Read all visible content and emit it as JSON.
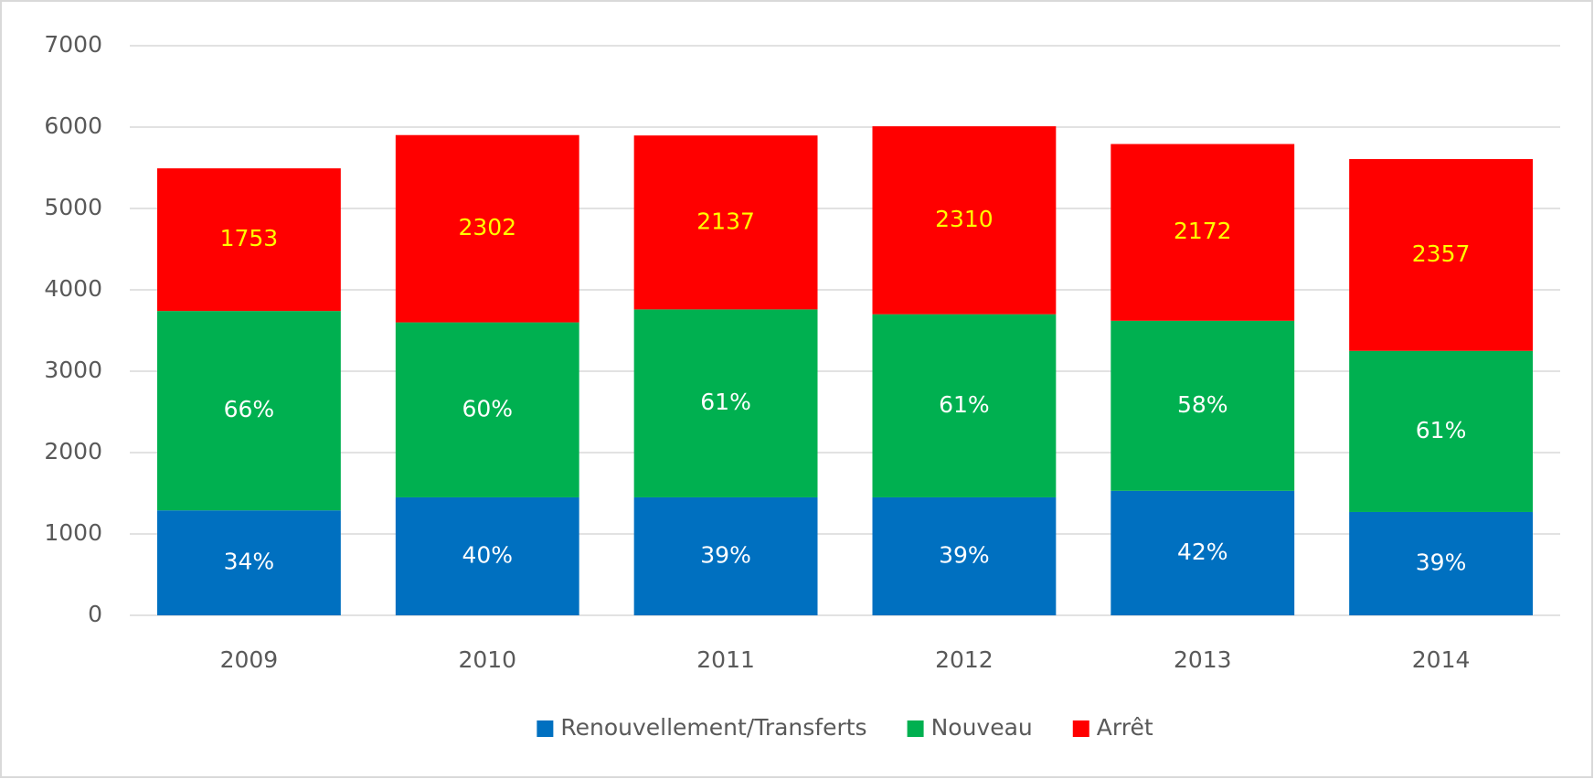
{
  "chart_data": {
    "type": "stacked_bar",
    "categories": [
      "2009",
      "2010",
      "2011",
      "2012",
      "2013",
      "2014"
    ],
    "series": [
      {
        "name": "Renouvellement/Transferts",
        "color": "#0070c0",
        "label_color": "#ffffff",
        "values": [
          1290,
          1450,
          1450,
          1450,
          1530,
          1270
        ],
        "segment_labels": [
          "34%",
          "40%",
          "39%",
          "39%",
          "42%",
          "39%"
        ]
      },
      {
        "name": "Nouveau",
        "color": "#00b050",
        "label_color": "#ffffff",
        "values": [
          2450,
          2150,
          2310,
          2250,
          2090,
          1980
        ],
        "segment_labels": [
          "66%",
          "60%",
          "61%",
          "61%",
          "58%",
          "61%"
        ]
      },
      {
        "name": "Arrêt",
        "color": "#ff0000",
        "label_color": "#ffff00",
        "values": [
          1753,
          2302,
          2137,
          2310,
          2172,
          2357
        ],
        "value_labels": [
          "1753",
          "2302",
          "2137",
          "2310",
          "2172",
          "2357"
        ]
      }
    ],
    "ylim": [
      0,
      7000
    ],
    "yticks": [
      0,
      1000,
      2000,
      3000,
      4000,
      5000,
      6000,
      7000
    ],
    "grid": true,
    "legend": "bottom"
  }
}
